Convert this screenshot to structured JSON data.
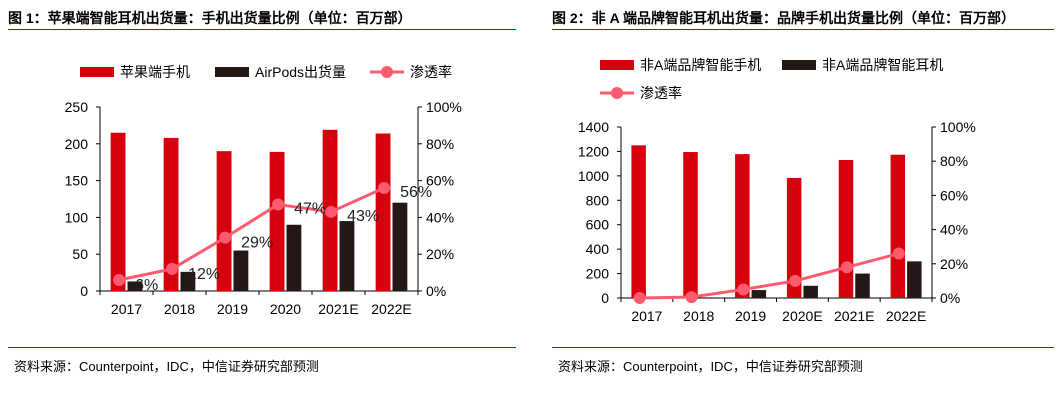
{
  "titles": [
    "图 1：苹果端智能耳机出货量：手机出货量比例（单位：百万部）",
    "图 2：非 A 端品牌智能耳机出货量：品牌手机出货量比例（单位：百万部）"
  ],
  "sources": [
    "资料来源：Counterpoint，IDC，中信证券研究部预测",
    "资料来源：Counterpoint，IDC，中信证券研究部预测"
  ],
  "colors": {
    "bar1": "#d7000f",
    "bar2": "#231815",
    "line": "#ff5a6e"
  },
  "chart_data": [
    {
      "type": "bar",
      "categories": [
        "2017",
        "2018",
        "2019",
        "2020",
        "2021E",
        "2022E"
      ],
      "series": [
        {
          "name": "苹果端手机",
          "values": [
            215,
            208,
            190,
            189,
            219,
            214
          ]
        },
        {
          "name": "AirPods出货量",
          "values": [
            13,
            26,
            55,
            90,
            95,
            120
          ]
        },
        {
          "name": "渗透率",
          "type": "line",
          "axis": "right",
          "values": [
            6,
            12,
            29,
            47,
            43,
            56
          ],
          "labels": [
            "6%",
            "12%",
            "29%",
            "47%",
            "43%",
            "56%"
          ]
        }
      ],
      "ylim": [
        0,
        250
      ],
      "yticks": [
        "0",
        "50",
        "100",
        "150",
        "200",
        "250"
      ],
      "y2lim": [
        0,
        100
      ],
      "y2ticks": [
        "0%",
        "20%",
        "40%",
        "60%",
        "80%",
        "100%"
      ],
      "legend": "top"
    },
    {
      "type": "bar",
      "categories": [
        "2017",
        "2018",
        "2019",
        "2020E",
        "2021E",
        "2022E"
      ],
      "series": [
        {
          "name": "非A端品牌智能手机",
          "values": [
            1250,
            1195,
            1178,
            983,
            1130,
            1173
          ]
        },
        {
          "name": "非A端品牌智能耳机",
          "values": [
            0,
            5,
            65,
            100,
            200,
            300
          ]
        },
        {
          "name": "渗透率",
          "type": "line",
          "axis": "right",
          "values": [
            0,
            0.5,
            5,
            10,
            18,
            26
          ]
        }
      ],
      "ylim": [
        0,
        1400
      ],
      "yticks": [
        "0",
        "200",
        "400",
        "600",
        "800",
        "1000",
        "1200",
        "1400"
      ],
      "y2lim": [
        0,
        100
      ],
      "y2ticks": [
        "0%",
        "20%",
        "40%",
        "60%",
        "80%",
        "100%"
      ],
      "legend": "top"
    }
  ]
}
